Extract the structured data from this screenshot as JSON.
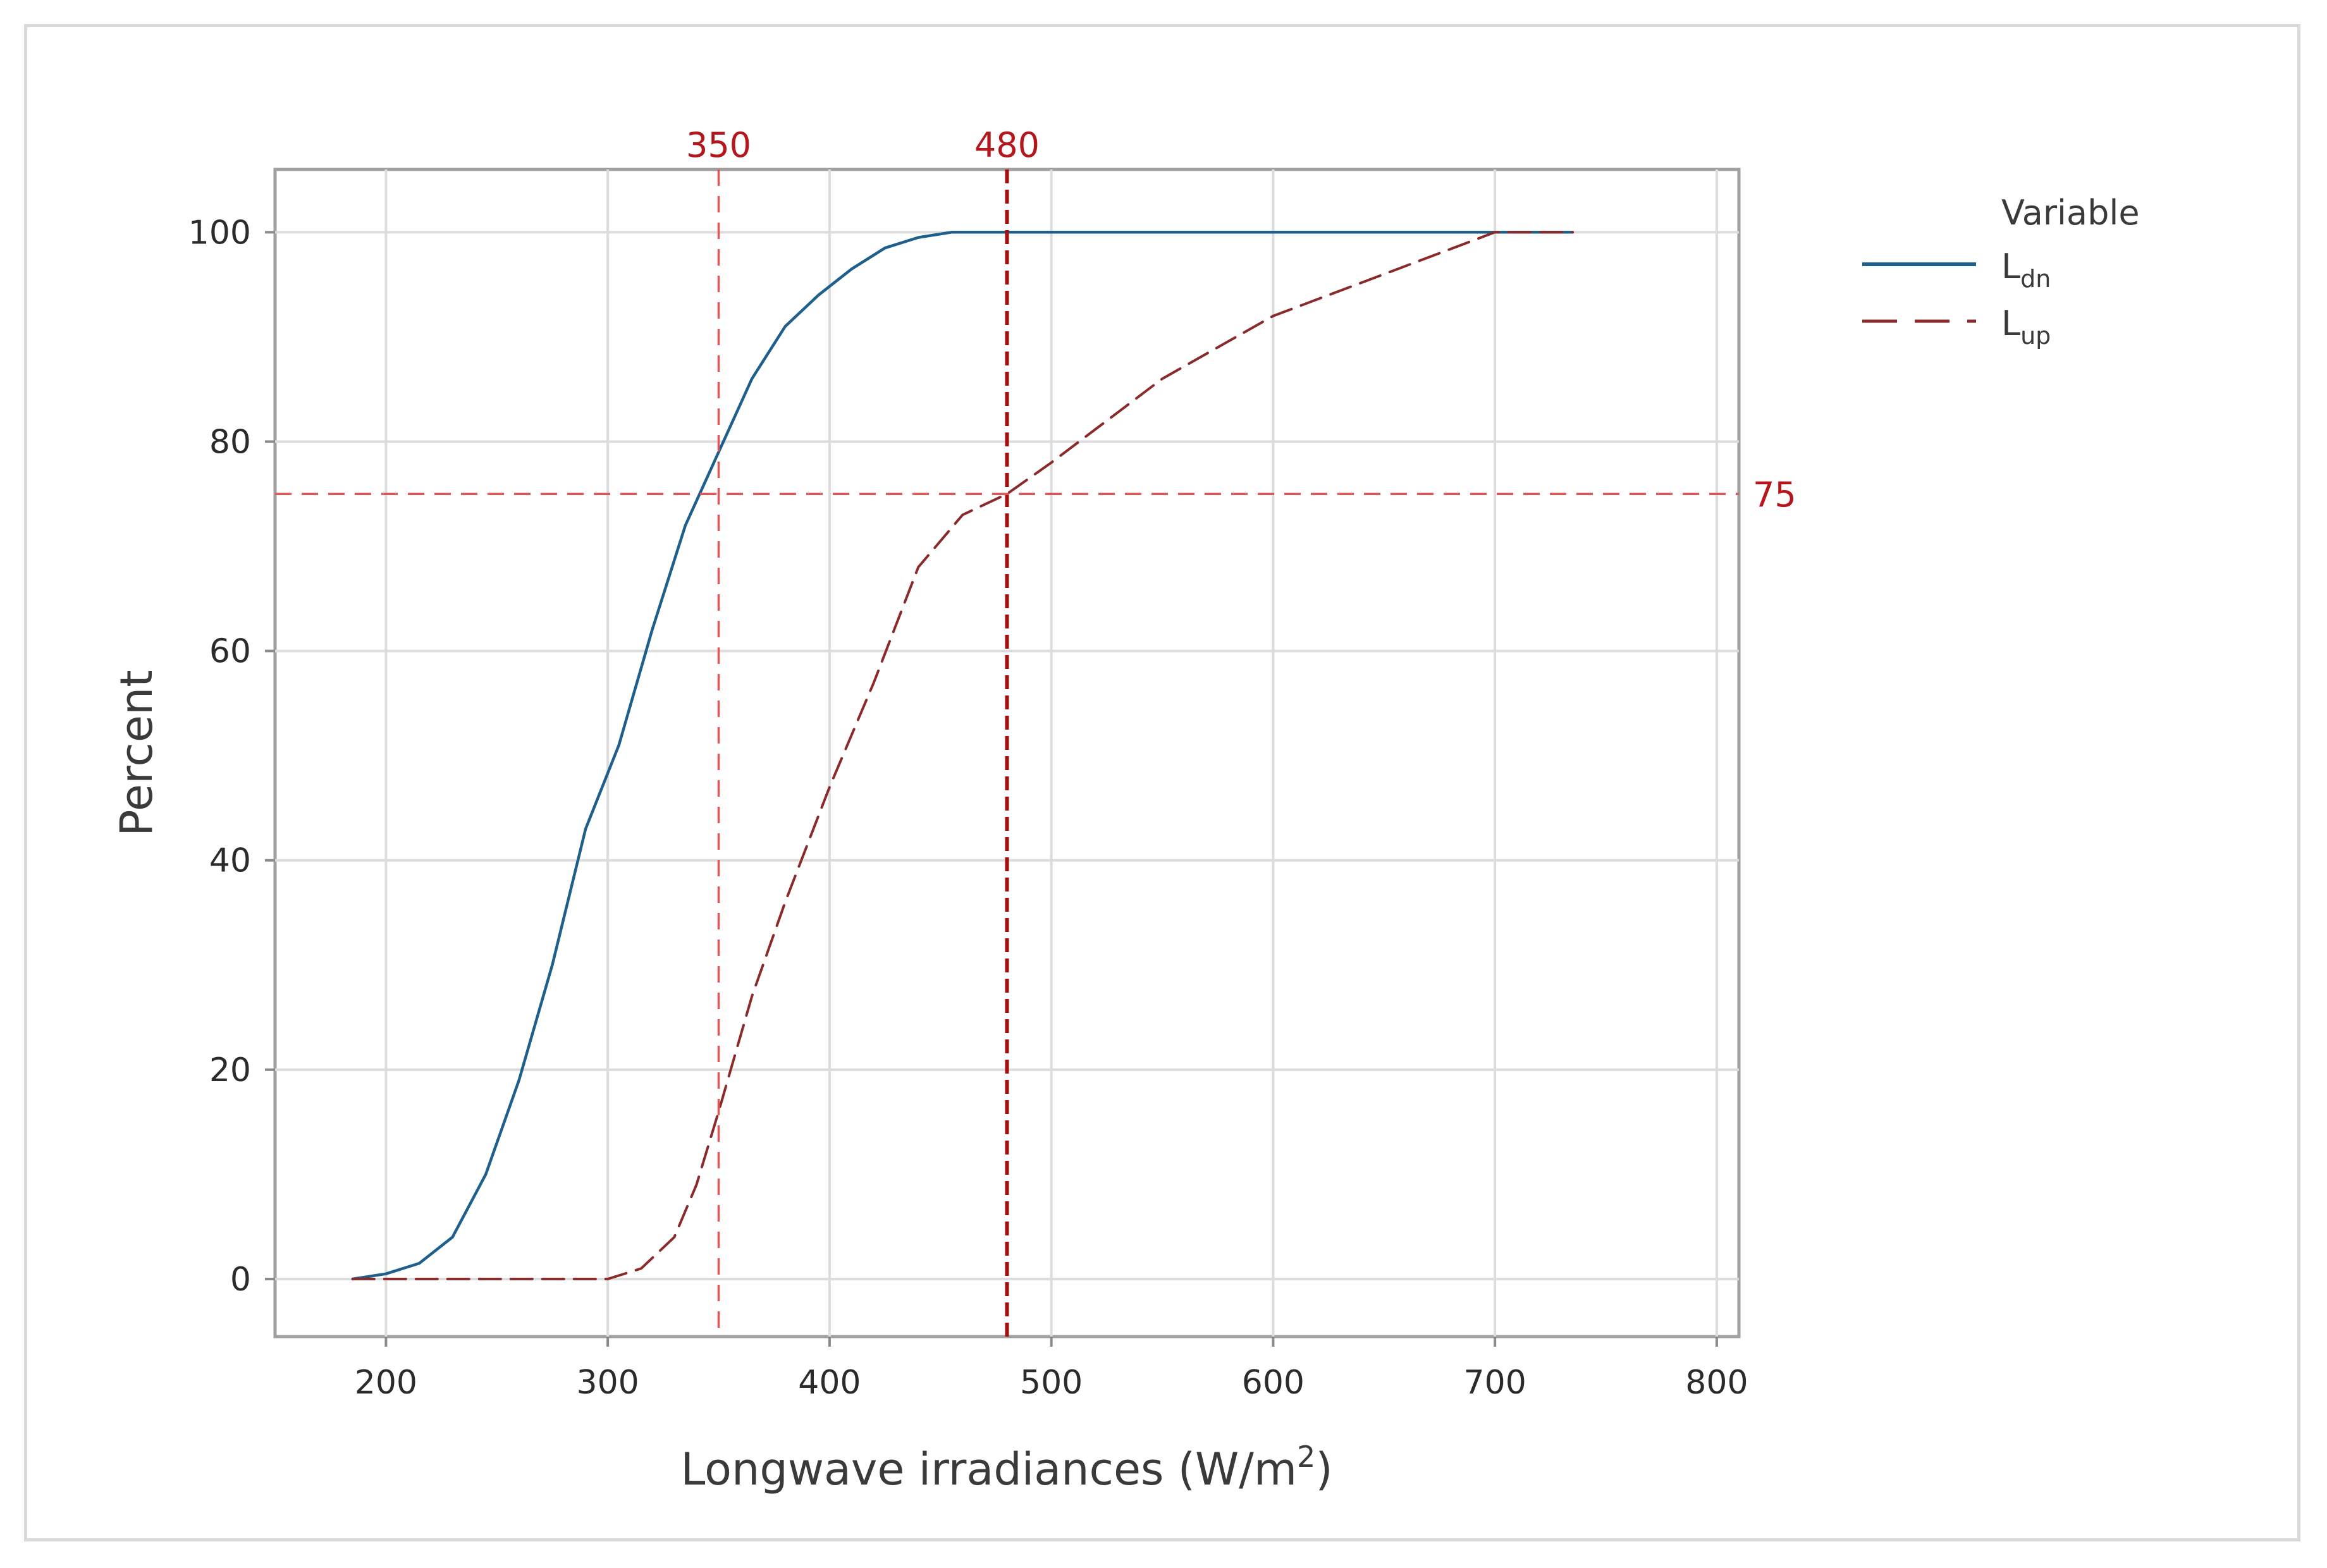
{
  "chart_data": {
    "type": "line",
    "title": "",
    "xlabel": "Longwave irradiances (W/m",
    "xlabel_superscript": "2",
    "xlabel_suffix": ")",
    "ylabel": "Percent",
    "xlim": [
      150,
      810
    ],
    "ylim": [
      -5.5,
      106
    ],
    "xticks": [
      200,
      300,
      400,
      500,
      600,
      700,
      800
    ],
    "xtick_labels": [
      "200",
      "300",
      "400",
      "500",
      "600",
      "700",
      "800"
    ],
    "yticks": [
      0,
      20,
      40,
      60,
      80,
      100
    ],
    "ytick_labels": [
      "0",
      "20",
      "40",
      "60",
      "80",
      "100"
    ],
    "grid": true,
    "legend": {
      "title": "Variable",
      "placement": "top-right outside",
      "entries": [
        {
          "label": "L",
          "subscript": "dn",
          "style": "solid",
          "color": "#1f5f8b"
        },
        {
          "label": "L",
          "subscript": "up",
          "style": "dashed",
          "color": "#8b2a2a"
        }
      ]
    },
    "series": [
      {
        "name": "Ldn",
        "style": "solid",
        "color": "#1f5f8b",
        "x": [
          185,
          200,
          215,
          230,
          245,
          260,
          275,
          290,
          305,
          320,
          335,
          350,
          365,
          380,
          395,
          410,
          425,
          440,
          455,
          470,
          500,
          600,
          700,
          735
        ],
        "y": [
          0,
          0.5,
          1.5,
          4,
          10,
          19,
          30,
          43,
          51,
          62,
          72,
          79,
          86,
          91,
          94,
          96.5,
          98.5,
          99.5,
          100,
          100,
          100,
          100,
          100,
          100
        ]
      },
      {
        "name": "Lup",
        "style": "dashed",
        "color": "#8b2a2a",
        "x": [
          185,
          250,
          300,
          315,
          330,
          340,
          350,
          365,
          380,
          400,
          420,
          440,
          460,
          480,
          500,
          550,
          600,
          650,
          700,
          735
        ],
        "y": [
          0,
          0,
          0,
          1,
          4,
          9,
          16,
          27,
          36,
          47,
          57,
          68,
          73,
          75,
          78,
          86,
          92,
          96,
          100,
          100
        ]
      }
    ],
    "reference_lines": [
      {
        "orientation": "vertical",
        "value": 350,
        "label": "350",
        "color": "#e05555",
        "weight": "light"
      },
      {
        "orientation": "vertical",
        "value": 480,
        "label": "480",
        "color": "#a50e0e",
        "weight": "bold"
      },
      {
        "orientation": "horizontal",
        "value": 75,
        "label": "75",
        "color": "#e05555",
        "weight": "light"
      }
    ]
  }
}
